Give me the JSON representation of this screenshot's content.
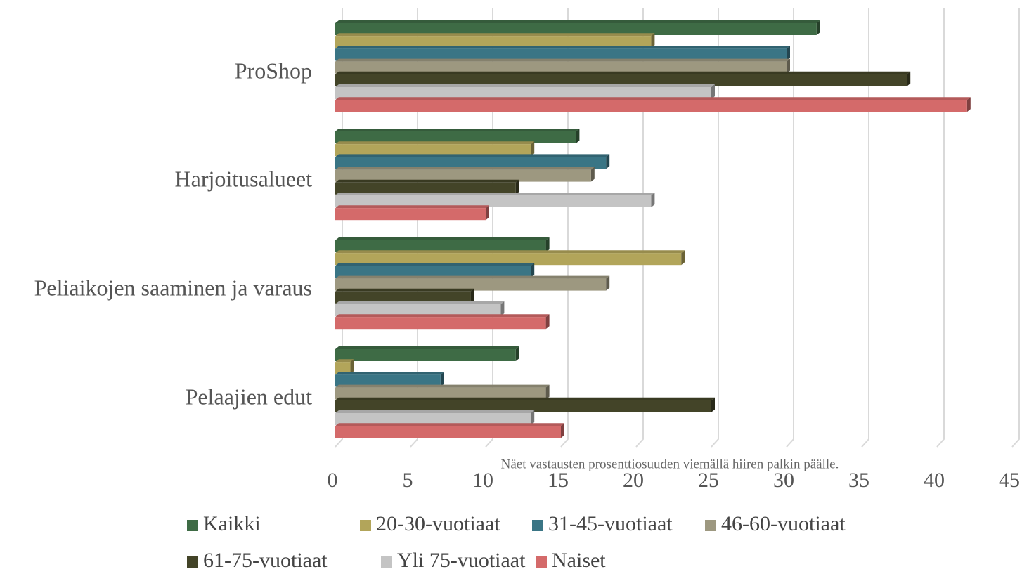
{
  "chart_data": {
    "type": "bar",
    "orientation": "horizontal",
    "categories": [
      "ProShop",
      "Harjoitusalueet",
      "Peliaikojen saaminen ja varaus",
      "Pelaajien edut"
    ],
    "series": [
      {
        "name": "Kaikki",
        "color": "#3e6b45",
        "values": [
          32,
          16,
          14,
          12
        ]
      },
      {
        "name": "20-30-vuotiaat",
        "color": "#b2a55a",
        "values": [
          21,
          13,
          23,
          1
        ]
      },
      {
        "name": "31-45-vuotiaat",
        "color": "#3a7585",
        "values": [
          30,
          18,
          13,
          7
        ]
      },
      {
        "name": "46-60-vuotiaat",
        "color": "#9d9880",
        "values": [
          30,
          17,
          18,
          14
        ]
      },
      {
        "name": "61-75-vuotiaat",
        "color": "#434428",
        "values": [
          38,
          12,
          9,
          25
        ]
      },
      {
        "name": "Yli 75-vuotiaat",
        "color": "#c4c4c4",
        "values": [
          25,
          21,
          11,
          13
        ]
      },
      {
        "name": "Naiset",
        "color": "#d46a6a",
        "values": [
          42,
          10,
          14,
          15
        ]
      }
    ],
    "xlim": [
      0,
      45
    ],
    "xticks": [
      0,
      5,
      10,
      15,
      20,
      25,
      30,
      35,
      40,
      45
    ],
    "grid": true,
    "annotation": "Näet vastausten prosenttiosuuden viemällä hiiren palkin päälle.",
    "legend": "bottom"
  }
}
